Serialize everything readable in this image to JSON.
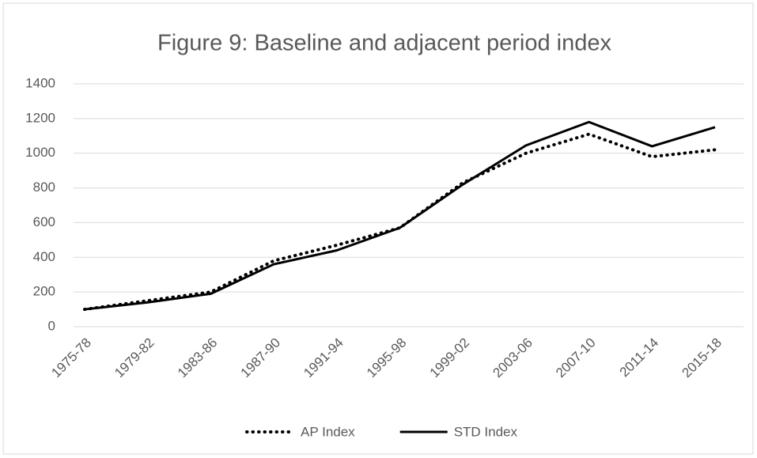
{
  "chart_data": {
    "type": "line",
    "title": "Figure 9: Baseline and adjacent period index",
    "categories": [
      "1975-78",
      "1979-82",
      "1983-86",
      "1987-90",
      "1991-94",
      "1995-98",
      "1999-02",
      "2003-06",
      "2007-10",
      "2011-14",
      "2015-18"
    ],
    "series": [
      {
        "name": "AP Index",
        "color": "#000000",
        "style": "dotted",
        "values": [
          100,
          150,
          200,
          380,
          470,
          570,
          830,
          1000,
          1110,
          980,
          1020
        ]
      },
      {
        "name": "STD Index",
        "color": "#000000",
        "style": "solid",
        "values": [
          100,
          140,
          190,
          360,
          440,
          570,
          820,
          1045,
          1180,
          1040,
          1150
        ]
      }
    ],
    "ylim": [
      0,
      1400
    ],
    "yticks": [
      0,
      200,
      400,
      600,
      800,
      1000,
      1200,
      1400
    ],
    "grid": true,
    "legend": "bottom"
  }
}
